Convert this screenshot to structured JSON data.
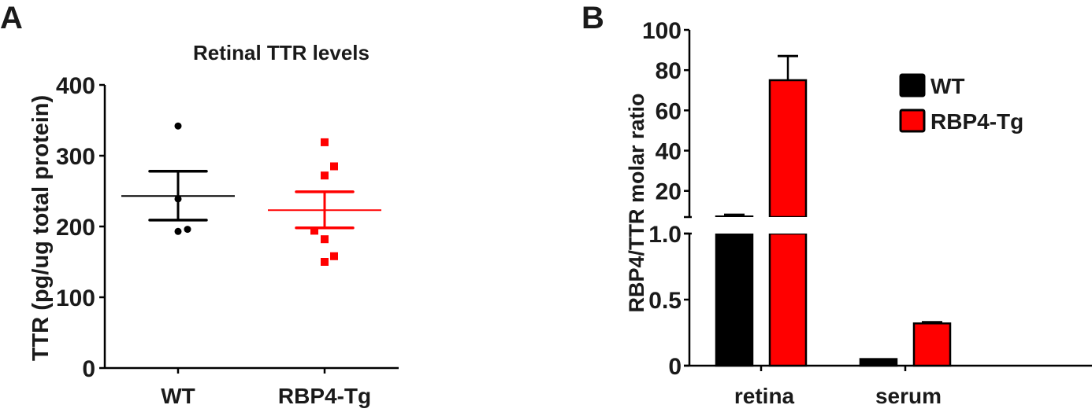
{
  "chart_data": [
    {
      "panel_label": "A",
      "type": "scatter",
      "title": "Retinal TTR levels",
      "xlabel": "",
      "ylabel": "TTR (pg/ug total protein)",
      "ylim": [
        0,
        400
      ],
      "yticks": [
        0,
        100,
        200,
        300,
        400
      ],
      "categories": [
        "WT",
        "RBP4-Tg"
      ],
      "series": [
        {
          "name": "WT",
          "color": "#000000",
          "marker": "circle",
          "points": [
            342,
            239,
            193,
            196
          ],
          "mean": 243,
          "sem_upper": 278,
          "sem_lower": 209
        },
        {
          "name": "RBP4-Tg",
          "color": "#ff0000",
          "marker": "square",
          "points": [
            319,
            285,
            272,
            194,
            182,
            158,
            150
          ],
          "mean": 223,
          "sem_upper": 249,
          "sem_lower": 198
        }
      ]
    },
    {
      "panel_label": "B",
      "type": "bar",
      "title": "",
      "xlabel": "",
      "ylabel": "RBP4/TTR molar ratio",
      "categories": [
        "retina",
        "serum"
      ],
      "axis_break": true,
      "y_lower_segment": {
        "ylim": [
          0,
          1.0
        ],
        "yticks": [
          "0",
          "0.5",
          "1.0"
        ]
      },
      "y_upper_segment": {
        "ylim": [
          7,
          100
        ],
        "yticks": [
          "20",
          "40",
          "60",
          "80",
          "100"
        ]
      },
      "series": [
        {
          "name": "WT",
          "color": "#000000",
          "values": [
            7.3,
            0.05
          ],
          "error": [
            0.8,
            0.0
          ]
        },
        {
          "name": "RBP4-Tg",
          "color": "#ff0000",
          "values": [
            75,
            0.32
          ],
          "error": [
            12,
            0.01
          ]
        }
      ],
      "legend": {
        "position": "top-right",
        "entries": [
          "WT",
          "RBP4-Tg"
        ]
      }
    }
  ]
}
